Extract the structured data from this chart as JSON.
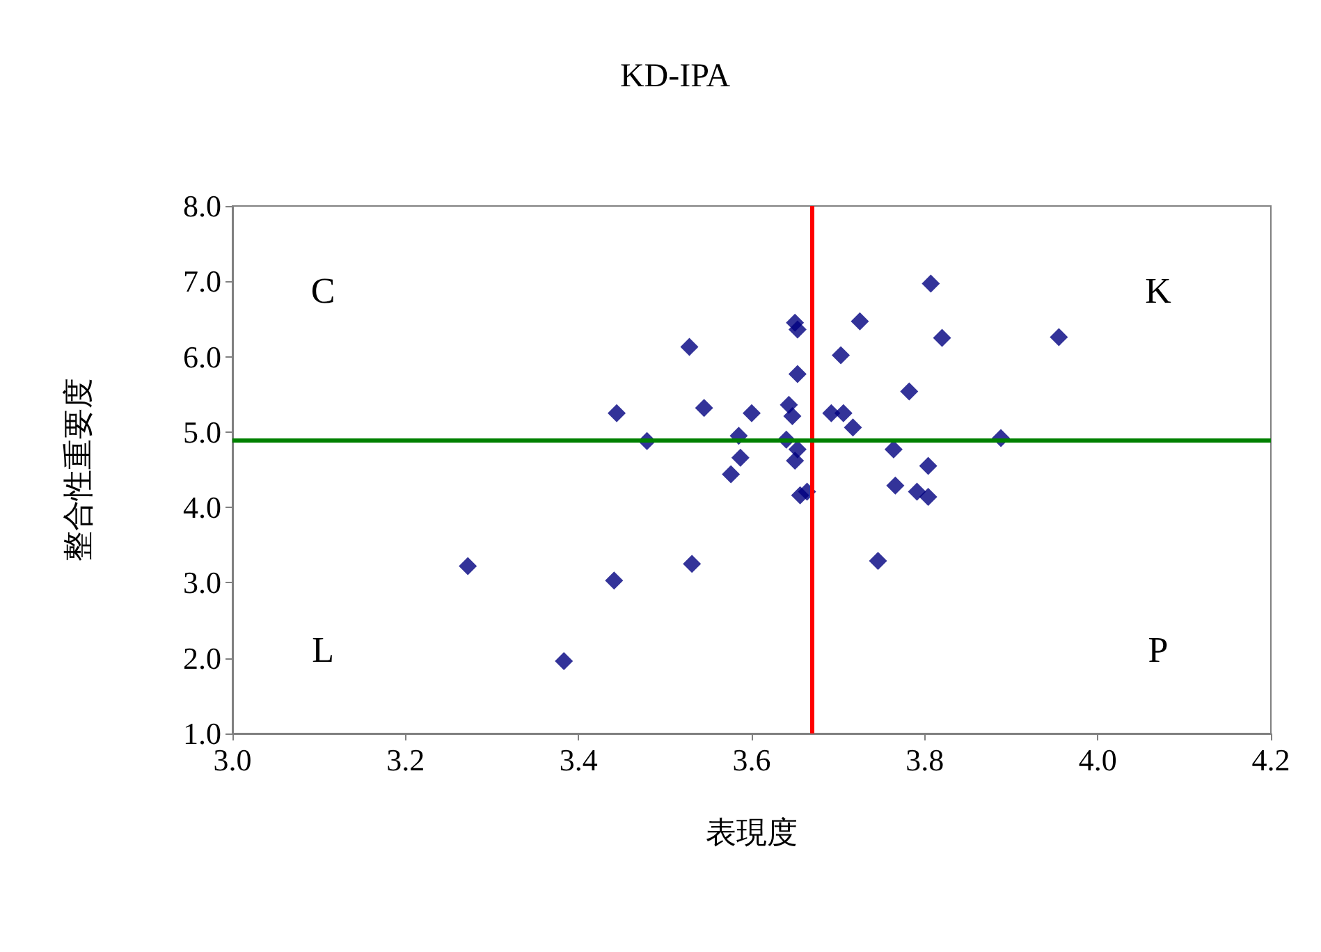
{
  "chart_data": {
    "type": "scatter",
    "title": "KD-IPA",
    "xlabel": "表現度",
    "ylabel": "整合性重要度",
    "x": [
      3.272,
      3.383,
      3.441,
      3.531,
      3.444,
      3.528,
      3.545,
      3.479,
      3.6,
      3.585,
      3.587,
      3.576,
      3.65,
      3.653,
      3.653,
      3.643,
      3.647,
      3.64,
      3.653,
      3.65,
      3.656,
      3.664,
      3.703,
      3.725,
      3.692,
      3.706,
      3.717,
      3.764,
      3.766,
      3.746,
      3.782,
      3.807,
      3.82,
      3.804,
      3.791,
      3.804,
      3.955,
      3.888
    ],
    "values": [
      3.22,
      1.96,
      3.03,
      3.25,
      5.25,
      6.13,
      5.32,
      4.88,
      5.25,
      4.95,
      4.66,
      4.44,
      6.45,
      6.36,
      5.77,
      5.36,
      5.21,
      4.9,
      4.77,
      4.62,
      4.16,
      4.21,
      6.02,
      6.47,
      5.25,
      5.25,
      5.06,
      4.77,
      4.29,
      3.29,
      5.54,
      6.97,
      6.25,
      4.55,
      4.21,
      4.14,
      6.26,
      4.92
    ],
    "color": "#000080",
    "marker": "diamond",
    "xlim": [
      3.0,
      4.2
    ],
    "xticks": [
      {
        "value": 3.0,
        "label": "3.0"
      },
      {
        "value": 3.2,
        "label": "3.2"
      },
      {
        "value": 3.4,
        "label": "3.4"
      },
      {
        "value": 3.6,
        "label": "3.6"
      },
      {
        "value": 3.8,
        "label": "3.8"
      },
      {
        "value": 4.0,
        "label": "4.0"
      },
      {
        "value": 4.2,
        "label": "4.2"
      }
    ],
    "ylim": [
      1.0,
      8.0
    ],
    "yticks": [
      {
        "value": 1,
        "label": "1.0"
      },
      {
        "value": 2,
        "label": "2.0"
      },
      {
        "value": 3,
        "label": "3.0"
      },
      {
        "value": 4,
        "label": "4.0"
      },
      {
        "value": 5,
        "label": "5.0"
      },
      {
        "value": 6,
        "label": "6.0"
      },
      {
        "value": 7,
        "label": "7.0"
      },
      {
        "value": 8,
        "label": "8.0"
      }
    ],
    "ref_lines": [
      {
        "axis": "x",
        "value": 3.665,
        "color": "#ff0000"
      },
      {
        "axis": "y",
        "value": 4.9,
        "color": "#008000"
      }
    ],
    "annotations": [
      "C",
      "K",
      "L",
      "P"
    ],
    "grid": false
  }
}
